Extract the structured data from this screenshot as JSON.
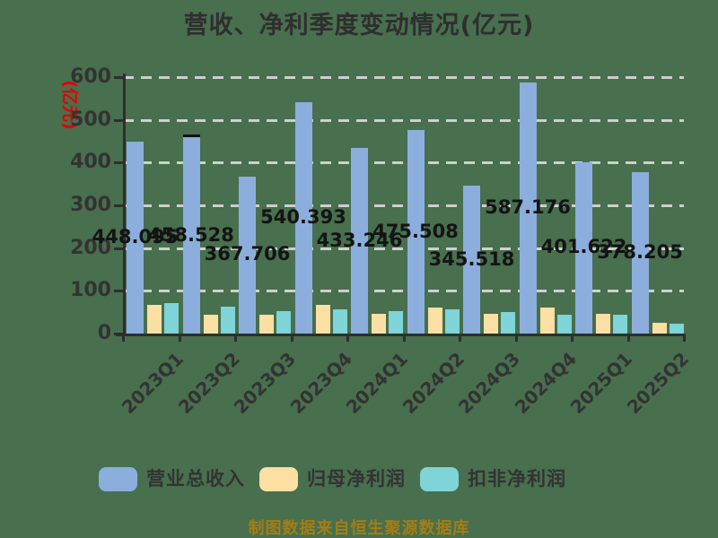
{
  "title": "营收、净利季度变动情况(亿元)",
  "y_axis_unit_label": "(亿元)",
  "footer": "制图数据来自恒生聚源数据库",
  "colors": {
    "background": "#486F4E",
    "axis": "#2E2E2E",
    "grid": "#CFCFCF",
    "title_text": "#2F2F2F",
    "tick_text": "#333333",
    "data_label_text": "#141414",
    "unit_label_text": "#E60000",
    "footer_text": "#A57D14",
    "legend_text": "#333333"
  },
  "legend": [
    {
      "label": "营业总收入",
      "color": "#8CAEDC"
    },
    {
      "label": "归母净利润",
      "color": "#FBDFA3"
    },
    {
      "label": "扣非净利润",
      "color": "#7ED4D6"
    }
  ],
  "chart_data": {
    "type": "bar",
    "title": "营收、净利季度变动情况(亿元)",
    "ylabel": "(亿元)",
    "ylim": [
      0,
      600
    ],
    "y_ticks": [
      0,
      100,
      200,
      300,
      400,
      500,
      600
    ],
    "grid": "horizontal dashed",
    "legend_position": "bottom",
    "categories": [
      "2023Q1",
      "2023Q2",
      "2023Q3",
      "2023Q4",
      "2024Q1",
      "2024Q2",
      "2024Q3",
      "2024Q4",
      "2025Q1",
      "2025Q2"
    ],
    "series": [
      {
        "name": "营业总收入",
        "color": "#8CAEDC",
        "values": [
          448.095,
          458.528,
          367.706,
          540.393,
          433.246,
          475.508,
          345.518,
          587.176,
          401.622,
          378.205
        ],
        "data_labels": [
          "448.095",
          "458.528",
          "367.706",
          "540.393",
          "433.246",
          "475.508",
          "345.518",
          "587.176",
          "401.622",
          "378.205"
        ]
      },
      {
        "name": "归母净利润",
        "color": "#FBDFA3",
        "values": [
          67,
          44,
          45,
          68,
          46,
          61,
          47,
          61,
          46,
          25
        ],
        "values_estimated_from_gridlines": true
      },
      {
        "name": "扣非净利润",
        "color": "#7ED4D6",
        "values": [
          71,
          62,
          52,
          56,
          53,
          57,
          51,
          44,
          44,
          23
        ],
        "values_estimated_from_gridlines": true
      }
    ],
    "bar_cap_marker": {
      "series_index": 0,
      "category_index": 1,
      "color": "#141414"
    }
  }
}
